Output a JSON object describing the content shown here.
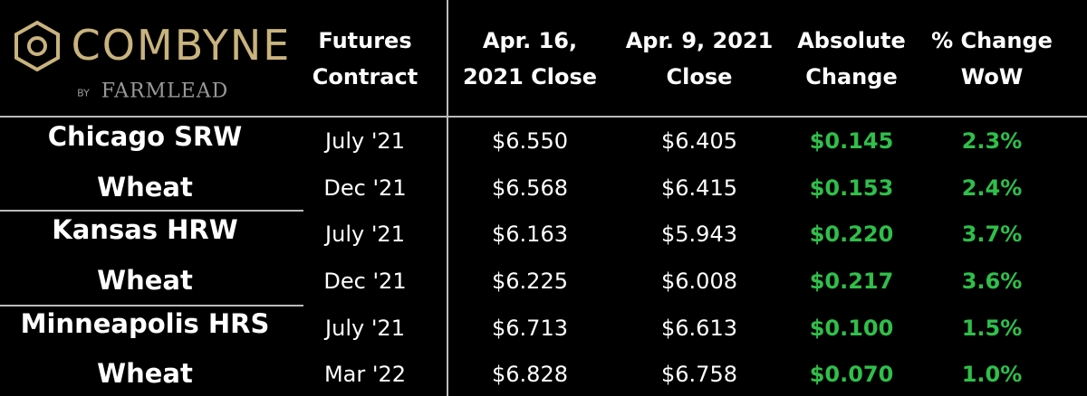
{
  "header": {
    "logo": "COMBYNE",
    "byline": "BY",
    "brand": "FARMLEAD",
    "columns": [
      [
        "Futures",
        "Contract"
      ],
      [
        "Apr. 16,",
        "2021 Close"
      ],
      [
        "Apr. 9, 2021",
        "Close"
      ],
      [
        "Absolute",
        "Change"
      ],
      [
        "% Change",
        "WoW"
      ]
    ]
  },
  "groups": [
    {
      "name": [
        "Chicago SRW",
        "Wheat"
      ],
      "rows": [
        [
          "July '21",
          "$6.550",
          "$6.405",
          "$0.145",
          "2.3%"
        ],
        [
          "Dec '21",
          "$6.568",
          "$6.415",
          "$0.153",
          "2.4%"
        ]
      ]
    },
    {
      "name": [
        "Kansas HRW",
        "Wheat"
      ],
      "rows": [
        [
          "July '21",
          "$6.163",
          "$5.943",
          "$0.220",
          "3.7%"
        ],
        [
          "Dec '21",
          "$6.225",
          "$6.008",
          "$0.217",
          "3.6%"
        ]
      ]
    },
    {
      "name": [
        "Minneapolis HRS",
        "Wheat"
      ],
      "rows": [
        [
          "July '21",
          "$6.713",
          "$6.613",
          "$0.100",
          "1.5%"
        ],
        [
          "Mar '22",
          "$6.828",
          "$6.758",
          "$0.070",
          "1.0%"
        ]
      ]
    }
  ]
}
